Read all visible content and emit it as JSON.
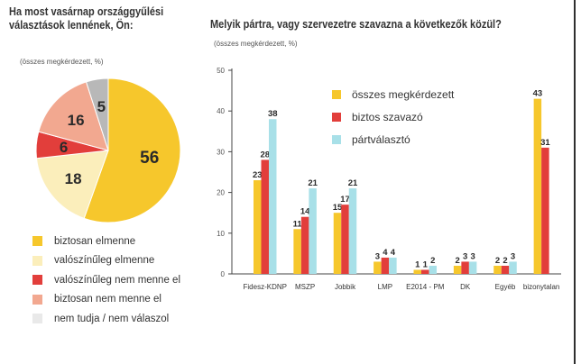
{
  "left_chart": {
    "title": "Ha most vasárnap országgyűlési választások lennének, Ön:",
    "note": "(összes megkérdezett, %)"
  },
  "right_chart": {
    "title": "Melyik pártra, vagy szervezetre szavazna a következők közül?",
    "note": "(összes megkérdezett, %)"
  },
  "colors": {
    "yellow": "#f6c72c",
    "light_yellow": "#fbeebb",
    "red": "#e23e3b",
    "salmon": "#f2a890",
    "gray": "#e9e9e9",
    "gray_slice": "#b8b8b8",
    "cyan": "#a8e0e8"
  },
  "chart_data": [
    {
      "type": "pie",
      "title": "Ha most vasárnap országgyűlési választások lennének, Ön:",
      "subtitle": "(összes megkérdezett, %)",
      "slices": [
        {
          "label": "biztosan elmenne",
          "value": 56,
          "color": "#f6c72c"
        },
        {
          "label": "valószínűleg elmenne",
          "value": 18,
          "color": "#fbeebb"
        },
        {
          "label": "valószínűleg nem menne el",
          "value": 6,
          "color": "#e23e3b"
        },
        {
          "label": "biztosan nem menne el",
          "value": 16,
          "color": "#f2a890"
        },
        {
          "label": "nem tudja / nem válaszol",
          "value": 5,
          "color": "#b8b8b8"
        }
      ],
      "legend": [
        {
          "label": "biztosan elmenne",
          "color": "#f6c72c"
        },
        {
          "label": "valószínűleg elmenne",
          "color": "#fbeebb"
        },
        {
          "label": "valószínűleg nem menne el",
          "color": "#e23e3b"
        },
        {
          "label": "biztosan nem menne el",
          "color": "#f2a890"
        },
        {
          "label": "nem tudja / nem válaszol",
          "color": "#e9e9e9"
        }
      ],
      "legend_placement": "bottom"
    },
    {
      "type": "bar",
      "title": "Melyik pártra, vagy szervezetre szavazna a következők közül?",
      "subtitle": "(összes megkérdezett, %)",
      "categories": [
        "Fidesz-KDNP",
        "MSZP",
        "Jobbik",
        "LMP",
        "E2014 - PM",
        "DK",
        "Egyéb",
        "bizonytalan"
      ],
      "series": [
        {
          "name": "összes megkérdezett",
          "color": "#f6c72c",
          "values": [
            23,
            11,
            15,
            3,
            1,
            2,
            2,
            43
          ]
        },
        {
          "name": "biztos szavazó",
          "color": "#e23e3b",
          "values": [
            28,
            14,
            17,
            4,
            1,
            3,
            2,
            31
          ]
        },
        {
          "name": "pártválasztó",
          "color": "#a8e0e8",
          "values": [
            38,
            21,
            21,
            4,
            2,
            3,
            3,
            null
          ]
        }
      ],
      "ylim": [
        0,
        50
      ],
      "yticks": [
        0,
        10,
        20,
        30,
        40,
        50
      ],
      "grid": false,
      "legend_placement": "top-center"
    }
  ]
}
